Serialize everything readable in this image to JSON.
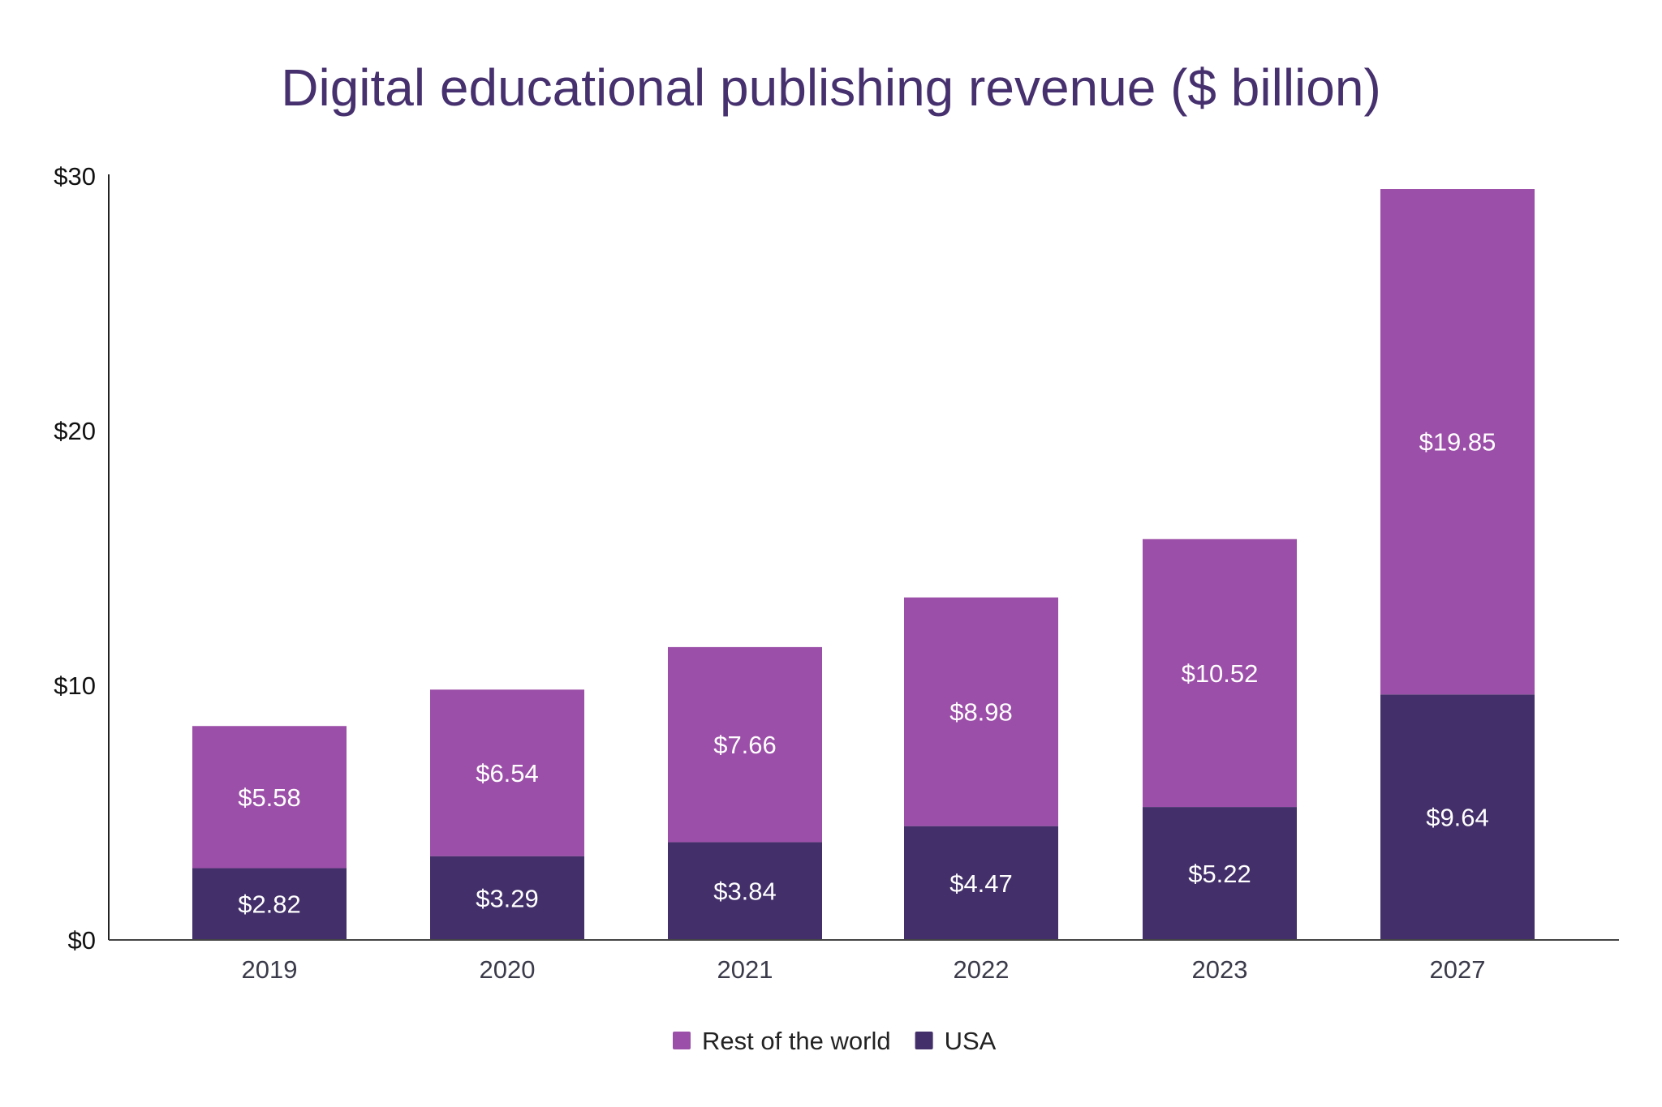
{
  "chart_data": {
    "type": "bar",
    "stacked": true,
    "title": "Digital educational publishing revenue ($ billion)",
    "xlabel": "",
    "ylabel": "",
    "ylim": [
      0,
      30
    ],
    "yticks": [
      0,
      10,
      20,
      30
    ],
    "ytick_labels": [
      "$0",
      "$10",
      "$20",
      "$30"
    ],
    "grid": false,
    "legend_position": "bottom",
    "categories": [
      "2019",
      "2020",
      "2021",
      "2022",
      "2023",
      "2027"
    ],
    "series": [
      {
        "name": "USA",
        "color": "#43306a",
        "values": [
          2.82,
          3.29,
          3.84,
          4.47,
          5.22,
          9.64
        ],
        "labels": [
          "$2.82",
          "$3.29",
          "$3.84",
          "$4.47",
          "$5.22",
          "$9.64"
        ]
      },
      {
        "name": "Rest of the world",
        "color": "#9c4fa8",
        "values": [
          5.58,
          6.54,
          7.66,
          8.98,
          10.52,
          19.85
        ],
        "labels": [
          "$5.58",
          "$6.54",
          "$7.66",
          "$8.98",
          "$10.52",
          "$19.85"
        ]
      }
    ],
    "legend_order": [
      "Rest of the world",
      "USA"
    ]
  }
}
